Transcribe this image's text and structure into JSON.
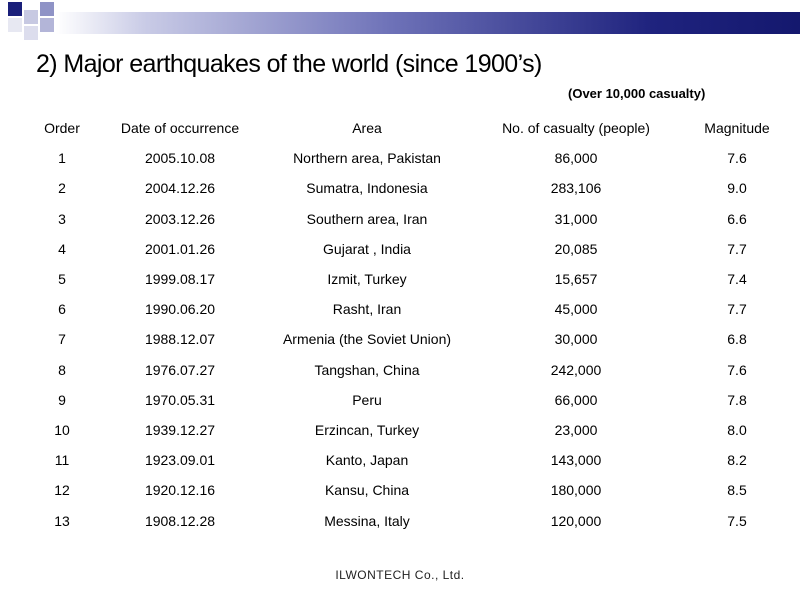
{
  "title": "2) Major earthquakes of the world (since 1900’s)",
  "note": "(Over 10,000 casualty)",
  "table": {
    "headers": {
      "order": "Order",
      "date": "Date of occurrence",
      "area": "Area",
      "casualty": "No. of casualty (people)",
      "magnitude": "Magnitude"
    },
    "rows": [
      {
        "order": "1",
        "date": "2005.10.08",
        "area": "Northern area, Pakistan",
        "casualty": "86,000",
        "magnitude": "7.6"
      },
      {
        "order": "2",
        "date": "2004.12.26",
        "area": "Sumatra, Indonesia",
        "casualty": "283,106",
        "magnitude": "9.0"
      },
      {
        "order": "3",
        "date": "2003.12.26",
        "area": "Southern area, Iran",
        "casualty": "31,000",
        "magnitude": "6.6"
      },
      {
        "order": "4",
        "date": "2001.01.26",
        "area": "Gujarat , India",
        "casualty": "20,085",
        "magnitude": "7.7"
      },
      {
        "order": "5",
        "date": "1999.08.17",
        "area": "Izmit, Turkey",
        "casualty": "15,657",
        "magnitude": "7.4"
      },
      {
        "order": "6",
        "date": "1990.06.20",
        "area": "Rasht, Iran",
        "casualty": "45,000",
        "magnitude": "7.7"
      },
      {
        "order": "7",
        "date": "1988.12.07",
        "area": "Armenia (the Soviet Union)",
        "casualty": "30,000",
        "magnitude": "6.8"
      },
      {
        "order": "8",
        "date": "1976.07.27",
        "area": "Tangshan, China",
        "casualty": "242,000",
        "magnitude": "7.6"
      },
      {
        "order": "9",
        "date": "1970.05.31",
        "area": "Peru",
        "casualty": "66,000",
        "magnitude": "7.8"
      },
      {
        "order": "10",
        "date": "1939.12.27",
        "area": "Erzincan, Turkey",
        "casualty": "23,000",
        "magnitude": "8.0"
      },
      {
        "order": "11",
        "date": "1923.09.01",
        "area": "Kanto, Japan",
        "casualty": "143,000",
        "magnitude": "8.2"
      },
      {
        "order": "12",
        "date": "1920.12.16",
        "area": "Kansu, China",
        "casualty": "180,000",
        "magnitude": "8.5"
      },
      {
        "order": "13",
        "date": "1908.12.28",
        "area": "Messina, Italy",
        "casualty": "120,000",
        "magnitude": "7.5"
      }
    ]
  },
  "footer": "ILWONTECH  Co., Ltd."
}
